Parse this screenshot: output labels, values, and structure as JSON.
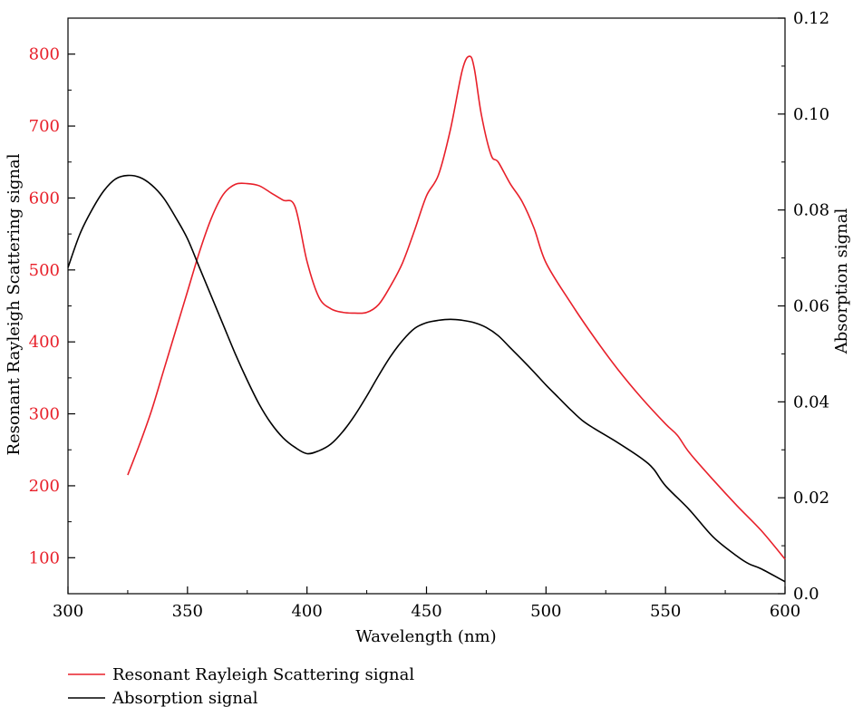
{
  "chart_data": {
    "type": "line",
    "xlabel": "Wavelength (nm)",
    "ylabel_left": "Resonant Rayleigh Scattering signal",
    "ylabel_right": "Absorption signal",
    "xlim": [
      300,
      600
    ],
    "ylim_left": [
      50,
      850
    ],
    "ylim_right": [
      0.0,
      0.12
    ],
    "x_ticks": [
      300,
      350,
      400,
      450,
      500,
      550,
      600
    ],
    "y_left_ticks": [
      100,
      200,
      300,
      400,
      500,
      600,
      700,
      800
    ],
    "y_right_ticks": [
      0.0,
      0.02,
      0.04,
      0.06,
      0.08,
      0.1,
      0.12
    ],
    "y_right_tick_labels": [
      "0.0",
      "0.02",
      "0.04",
      "0.06",
      "0.08",
      "0.10",
      "0.12"
    ],
    "grid": false,
    "legend_position": "bottom-left",
    "series": [
      {
        "name": "Resonant Rayleigh Scattering signal",
        "axis": "left",
        "color": "#e8202a",
        "x": [
          325,
          330,
          335,
          340,
          345,
          350,
          355,
          360,
          365,
          370,
          375,
          380,
          385,
          390,
          395,
          400,
          405,
          410,
          415,
          420,
          425,
          430,
          435,
          440,
          445,
          450,
          455,
          460,
          465,
          468,
          470,
          473,
          477,
          480,
          485,
          490,
          495,
          500,
          510,
          520,
          530,
          540,
          550,
          555,
          560,
          570,
          580,
          590,
          600
        ],
        "y": [
          215,
          258,
          305,
          360,
          415,
          470,
          525,
          572,
          605,
          619,
          620,
          617,
          607,
          597,
          588,
          512,
          462,
          446,
          441,
          440,
          441,
          452,
          478,
          510,
          555,
          603,
          632,
          695,
          778,
          797,
          780,
          715,
          660,
          650,
          620,
          595,
          558,
          510,
          456,
          407,
          362,
          322,
          286,
          270,
          246,
          208,
          172,
          138,
          98
        ]
      },
      {
        "name": "Absorption signal",
        "axis": "right",
        "color": "#000000",
        "x": [
          300,
          305,
          310,
          315,
          320,
          325,
          330,
          335,
          340,
          345,
          350,
          355,
          360,
          365,
          370,
          375,
          380,
          385,
          390,
          395,
          400,
          405,
          410,
          415,
          420,
          425,
          430,
          435,
          440,
          445,
          450,
          455,
          460,
          465,
          470,
          475,
          480,
          485,
          490,
          495,
          500,
          505,
          510,
          515,
          520,
          530,
          540,
          545,
          550,
          560,
          570,
          580,
          585,
          590,
          600
        ],
        "y": [
          0.068,
          0.075,
          0.08,
          0.084,
          0.0865,
          0.0872,
          0.0868,
          0.0852,
          0.0825,
          0.0785,
          0.074,
          0.068,
          0.062,
          0.056,
          0.05,
          0.0445,
          0.0395,
          0.0355,
          0.0325,
          0.0305,
          0.0292,
          0.0298,
          0.0312,
          0.0338,
          0.0372,
          0.0412,
          0.0455,
          0.0495,
          0.0528,
          0.0553,
          0.0565,
          0.057,
          0.0572,
          0.057,
          0.0565,
          0.0555,
          0.0538,
          0.0513,
          0.0488,
          0.0462,
          0.0435,
          0.041,
          0.0385,
          0.0362,
          0.0345,
          0.0315,
          0.0282,
          0.026,
          0.0225,
          0.0175,
          0.0118,
          0.0078,
          0.0062,
          0.0052,
          0.0025
        ]
      }
    ]
  }
}
